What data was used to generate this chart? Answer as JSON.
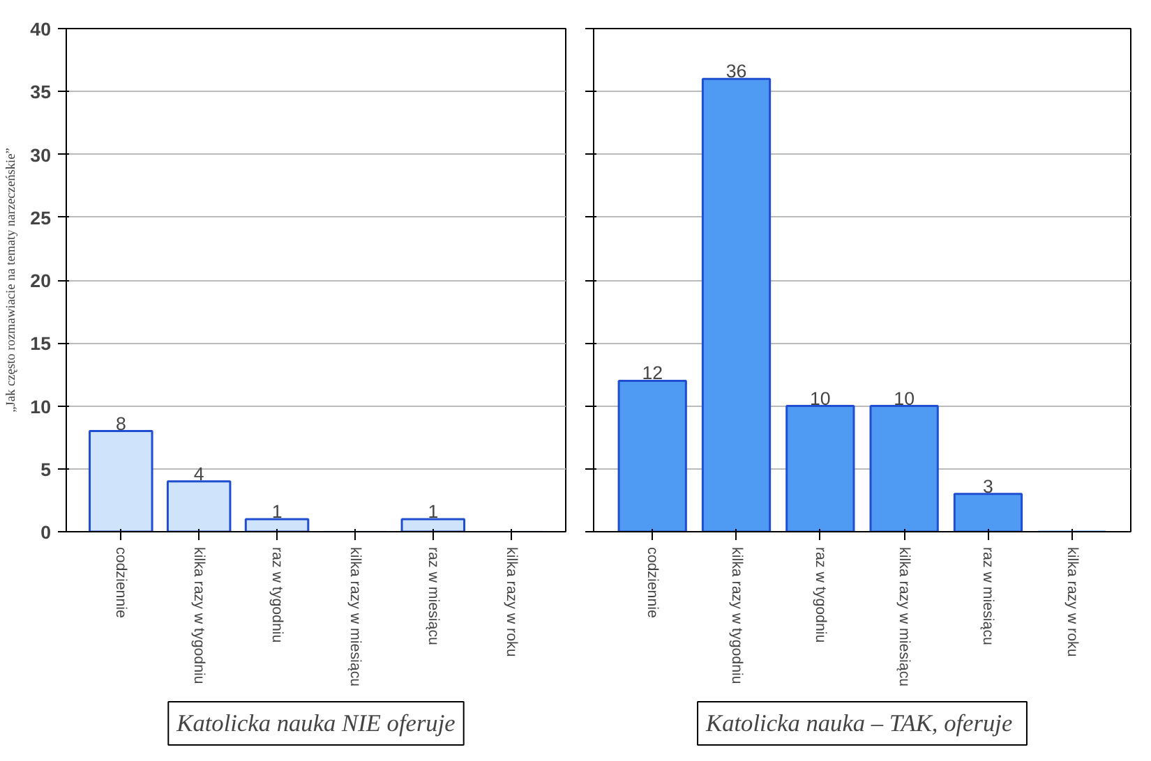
{
  "chart_data": [
    {
      "type": "bar",
      "title": "Katolicka nauka NIE oferuje",
      "ylabel": "„Jak często rozmawiacie na tematy narzeczeńskie”",
      "categories": [
        "codziennie",
        "kilka razy w tygodniu",
        "raz w tygodniu",
        "kilka razy w miesiącu",
        "raz w miesiącu",
        "kilka razy w roku"
      ],
      "values": [
        8,
        4,
        1,
        0,
        1,
        0
      ],
      "value_labels": [
        "8",
        "4",
        "1",
        null,
        "1",
        null
      ],
      "color": "#cfe3fb",
      "ylim": [
        0,
        40
      ],
      "yticks": [
        0,
        5,
        10,
        15,
        20,
        25,
        30,
        35,
        40
      ],
      "grid": "y"
    },
    {
      "type": "bar",
      "title": "Katolicka nauka – TAK,  oferuje",
      "categories": [
        "codziennie",
        "kilka razy w tygodniu",
        "raz w tygodniu",
        "kilka razy w miesiącu",
        "raz w miesiącu",
        "kilka razy w roku"
      ],
      "values": [
        12,
        36,
        10,
        10,
        3,
        0
      ],
      "value_labels": [
        "12",
        "36",
        "10",
        "10",
        "3",
        null
      ],
      "color": "#4f9af2",
      "ylim": [
        0,
        40
      ],
      "yticks": [
        0,
        5,
        10,
        15,
        20,
        25,
        30,
        35,
        40
      ],
      "grid": "y",
      "tick_labels": "x"
    }
  ]
}
